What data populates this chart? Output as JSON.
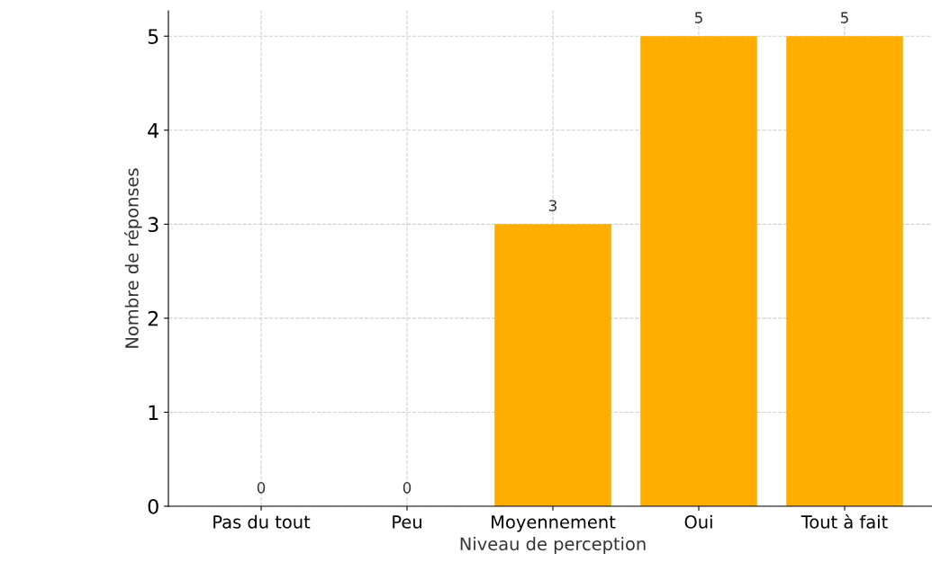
{
  "chart_data": {
    "type": "bar",
    "xlabel": "Niveau de perception",
    "ylabel": "Nombre de réponses",
    "categories": [
      "Pas du tout",
      "Peu",
      "Moyennement",
      "Oui",
      "Tout à fait"
    ],
    "values": [
      0,
      0,
      3,
      5,
      5
    ],
    "color": "#ffae00",
    "ylim": [
      0,
      5.27
    ],
    "yticks": [
      0,
      1,
      2,
      3,
      4,
      5
    ],
    "grid": true,
    "data_labels": true
  }
}
